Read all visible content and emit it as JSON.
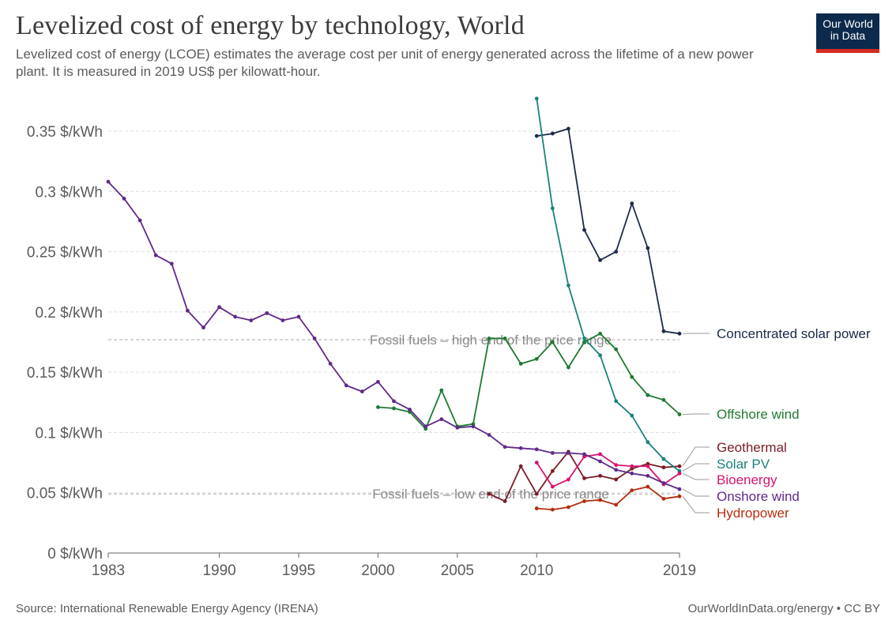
{
  "header": {
    "title": "Levelized cost of energy by technology, World",
    "subtitle": "Levelized cost of energy (LCOE) estimates the average cost per unit of energy generated across the lifetime of a new power plant. It is measured in 2019 US$ per kilowatt-hour.",
    "logo_line1": "Our World",
    "logo_line2": "in Data"
  },
  "footer": {
    "source": "Source: International Renewable Energy Agency (IRENA)",
    "credit": "OurWorldInData.org/energy • CC BY"
  },
  "colors": {
    "logo_bg": "#0c2a4b",
    "logo_accent": "#d42b21",
    "grid": "#dddddd",
    "axis": "#666666"
  },
  "chart_data": {
    "type": "line",
    "title": "Levelized cost of energy by technology, World",
    "xlabel": "",
    "ylabel": "",
    "xlim": [
      1983,
      2019
    ],
    "ylim": [
      0,
      0.35
    ],
    "x_ticks": [
      {
        "value": 1983,
        "label": "1983"
      },
      {
        "value": 1990,
        "label": "1990"
      },
      {
        "value": 1995,
        "label": "1995"
      },
      {
        "value": 2000,
        "label": "2000"
      },
      {
        "value": 2005,
        "label": "2005"
      },
      {
        "value": 2010,
        "label": "2010"
      },
      {
        "value": 2019,
        "label": "2019"
      }
    ],
    "y_ticks": [
      {
        "value": 0,
        "label": "0 $/kWh"
      },
      {
        "value": 0.05,
        "label": "0.05 $/kWh"
      },
      {
        "value": 0.1,
        "label": "0.1 $/kWh"
      },
      {
        "value": 0.15,
        "label": "0.15 $/kWh"
      },
      {
        "value": 0.2,
        "label": "0.2 $/kWh"
      },
      {
        "value": 0.25,
        "label": "0.25 $/kWh"
      },
      {
        "value": 0.3,
        "label": "0.3 $/kWh"
      },
      {
        "value": 0.35,
        "label": "0.35 $/kWh"
      }
    ],
    "grid": true,
    "reference_lines": [
      {
        "value": 0.177,
        "label": "Fossil fuels – high end of the price range"
      },
      {
        "value": 0.049,
        "label": "Fossil fuels – low end of the price range"
      }
    ],
    "series": [
      {
        "name": "Concentrated solar power",
        "color": "#1b2a46",
        "x": [
          2010,
          2011,
          2012,
          2013,
          2014,
          2015,
          2016,
          2017,
          2018,
          2019
        ],
        "values": [
          0.346,
          0.348,
          0.352,
          0.268,
          0.243,
          0.25,
          0.29,
          0.253,
          0.184,
          0.182
        ]
      },
      {
        "name": "Offshore wind",
        "color": "#1e7a32",
        "x": [
          2000,
          2001,
          2002,
          2003,
          2004,
          2005,
          2006,
          2007,
          2008,
          2009,
          2010,
          2011,
          2012,
          2013,
          2014,
          2015,
          2016,
          2017,
          2018,
          2019
        ],
        "values": [
          0.121,
          0.12,
          0.117,
          0.103,
          0.135,
          0.105,
          0.107,
          0.178,
          0.178,
          0.157,
          0.161,
          0.175,
          0.154,
          0.175,
          0.182,
          0.169,
          0.146,
          0.131,
          0.127,
          0.115
        ]
      },
      {
        "name": "Geothermal",
        "color": "#7b1c24",
        "x": [
          2007,
          2008,
          2009,
          2010,
          2011,
          2012,
          2013,
          2014,
          2015,
          2016,
          2017,
          2018,
          2019
        ],
        "values": [
          0.049,
          0.043,
          0.072,
          0.049,
          0.068,
          0.084,
          0.062,
          0.064,
          0.061,
          0.07,
          0.074,
          0.071,
          0.072
        ]
      },
      {
        "name": "Solar PV",
        "color": "#19827c",
        "x": [
          2010,
          2011,
          2012,
          2013,
          2014,
          2015,
          2016,
          2017,
          2018,
          2019
        ],
        "values": [
          0.377,
          0.286,
          0.222,
          0.178,
          0.164,
          0.126,
          0.114,
          0.092,
          0.078,
          0.068
        ]
      },
      {
        "name": "Bioenergy",
        "color": "#d8146e",
        "x": [
          2010,
          2011,
          2012,
          2013,
          2014,
          2015,
          2016,
          2017,
          2018,
          2019
        ],
        "values": [
          0.075,
          0.055,
          0.061,
          0.08,
          0.082,
          0.073,
          0.072,
          0.072,
          0.057,
          0.066
        ]
      },
      {
        "name": "Onshore wind",
        "color": "#5f2a8a",
        "x": [
          1983,
          1984,
          1985,
          1986,
          1987,
          1988,
          1989,
          1990,
          1991,
          1992,
          1993,
          1994,
          1995,
          1996,
          1997,
          1998,
          1999,
          2000,
          2001,
          2002,
          2003,
          2004,
          2005,
          2006,
          2007,
          2008,
          2009,
          2010,
          2011,
          2012,
          2013,
          2014,
          2015,
          2016,
          2017,
          2018,
          2019
        ],
        "values": [
          0.308,
          0.294,
          0.276,
          0.247,
          0.24,
          0.201,
          0.187,
          0.204,
          0.196,
          0.193,
          0.199,
          0.193,
          0.196,
          0.178,
          0.157,
          0.139,
          0.134,
          0.142,
          0.126,
          0.119,
          0.105,
          0.111,
          0.104,
          0.105,
          0.098,
          0.088,
          0.087,
          0.086,
          0.083,
          0.083,
          0.082,
          0.076,
          0.069,
          0.066,
          0.064,
          0.058,
          0.053
        ]
      },
      {
        "name": "Hydropower",
        "color": "#b42e0e",
        "x": [
          2010,
          2011,
          2012,
          2013,
          2014,
          2015,
          2016,
          2017,
          2018,
          2019
        ],
        "values": [
          0.037,
          0.036,
          0.038,
          0.043,
          0.044,
          0.04,
          0.052,
          0.055,
          0.045,
          0.047
        ]
      }
    ]
  }
}
